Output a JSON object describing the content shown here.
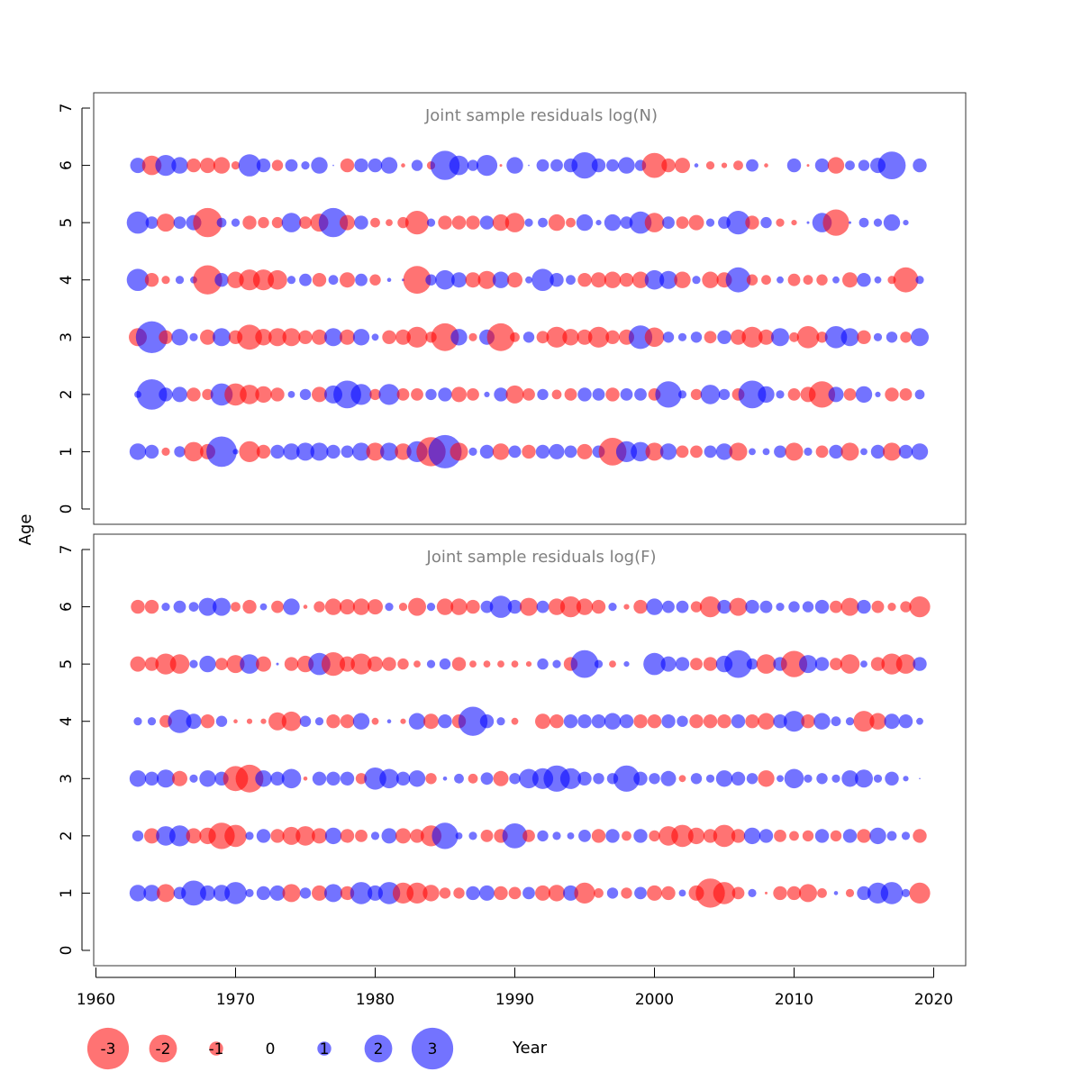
{
  "chart_data": {
    "type": "bubble",
    "ylabel": "Age",
    "xlabel": "Year",
    "xlim": [
      1960,
      2022
    ],
    "ylim": [
      0,
      7
    ],
    "x_ticks": [
      1960,
      1970,
      1980,
      1990,
      2000,
      2010,
      2020
    ],
    "y_ticks": [
      0,
      1,
      2,
      3,
      4,
      5,
      6,
      7
    ],
    "colors": {
      "positive": "#0000ff",
      "negative": "#ff0000",
      "alpha": 0.55
    },
    "legend": {
      "values": [
        -3,
        -2,
        -1,
        0,
        1,
        2,
        3
      ],
      "labels": [
        "-3",
        "-2",
        "-1",
        "0",
        "1",
        "2",
        "3"
      ]
    },
    "panels": [
      {
        "title": "Joint sample residuals log(N)",
        "years": [
          1963,
          1964,
          1965,
          1966,
          1967,
          1968,
          1969,
          1970,
          1971,
          1972,
          1973,
          1974,
          1975,
          1976,
          1977,
          1978,
          1979,
          1980,
          1981,
          1982,
          1983,
          1984,
          1985,
          1986,
          1987,
          1988,
          1989,
          1990,
          1991,
          1992,
          1993,
          1994,
          1995,
          1996,
          1997,
          1998,
          1999,
          2000,
          2001,
          2002,
          2003,
          2004,
          2005,
          2006,
          2007,
          2008,
          2009,
          2010,
          2011,
          2012,
          2013,
          2014,
          2015,
          2016,
          2017,
          2018,
          2019
        ],
        "ages": [
          1,
          2,
          3,
          4,
          5,
          6
        ],
        "residuals": [
          [
            1.2,
            1.0,
            -0.6,
            0.8,
            -1.4,
            -1.1,
            2.2,
            0.4,
            -1.5,
            -1.0,
            1.0,
            1.2,
            1.3,
            1.3,
            1.0,
            0.9,
            1.3,
            -1.3,
            1.3,
            -1.2,
            1.5,
            -2.1,
            2.4,
            -1.3,
            0.6,
            1.0,
            -1.2,
            0.9,
            -1.0,
            1.0,
            1.1,
            0.9,
            -1.1,
            0.9,
            -2.0,
            1.5,
            1.4,
            -1.3,
            1.2,
            -0.9,
            -0.9,
            0.9,
            1.2,
            -1.3,
            0.5,
            0.5,
            0.9,
            -1.3,
            0.6,
            -0.9,
            1.0,
            -1.3,
            0.5,
            1.0,
            -1.3,
            1.0,
            1.2
          ],
          [
            0.5,
            2.2,
            1.0,
            1.1,
            -1.0,
            -0.8,
            1.6,
            -1.6,
            -1.4,
            -1.2,
            -1.0,
            0.5,
            0.8,
            -1.1,
            1.3,
            2.0,
            1.5,
            -0.8,
            1.5,
            -0.9,
            -0.9,
            0.8,
            1.0,
            -1.1,
            -0.9,
            0.4,
            1.0,
            -1.3,
            -0.9,
            0.8,
            -0.7,
            -0.9,
            1.0,
            0.9,
            -1.0,
            0.9,
            0.9,
            -0.9,
            1.9,
            0.6,
            -0.8,
            1.4,
            0.8,
            -0.9,
            2.0,
            1.2,
            0.6,
            -0.9,
            -1.1,
            -1.9,
            1.1,
            -0.9,
            1.2,
            0.4,
            -1.0,
            -0.9,
            0.7
          ],
          [
            -1.3,
            2.3,
            -1.0,
            1.2,
            0.6,
            -1.1,
            1.3,
            -1.0,
            -1.8,
            -1.2,
            -1.3,
            -1.3,
            -1.0,
            -1.1,
            1.3,
            -1.1,
            1.2,
            0.5,
            -1.0,
            -1.1,
            -1.5,
            -0.8,
            -2.0,
            1.2,
            -0.6,
            1.1,
            -2.0,
            -0.7,
            0.8,
            -0.9,
            -1.5,
            -1.2,
            -1.1,
            -1.5,
            -1.0,
            -1.1,
            1.7,
            -1.4,
            0.8,
            0.6,
            0.8,
            -0.9,
            1.0,
            -1.1,
            -1.5,
            -1.1,
            1.3,
            -0.7,
            -1.6,
            -0.8,
            1.6,
            1.3,
            -1.0,
            0.6,
            0.8,
            -0.8,
            1.3
          ],
          [
            1.6,
            -1.0,
            -0.6,
            0.6,
            0.5,
            -2.1,
            1.0,
            -1.2,
            -1.5,
            -1.5,
            -1.4,
            0.6,
            0.9,
            -1.0,
            0.7,
            -1.1,
            0.9,
            -0.8,
            0.3,
            0.2,
            -2.0,
            0.8,
            1.4,
            1.1,
            -1.1,
            -1.3,
            1.2,
            -1.1,
            0.5,
            1.6,
            1.0,
            0.7,
            -1.0,
            -1.1,
            -1.2,
            -1.0,
            -1.2,
            1.4,
            1.3,
            -1.2,
            0.6,
            -1.2,
            -1.1,
            1.8,
            -0.8,
            -0.7,
            0.5,
            -0.9,
            -0.7,
            -0.8,
            0.5,
            -1.1,
            1.0,
            0.5,
            -0.6,
            -1.8,
            0.6
          ],
          [
            1.6,
            0.9,
            -1.3,
            0.9,
            1.1,
            -2.1,
            0.7,
            0.6,
            -1.0,
            -0.8,
            -0.8,
            1.4,
            -0.9,
            -1.3,
            2.1,
            -1.1,
            1.0,
            -0.7,
            -0.5,
            -0.8,
            -1.7,
            0.6,
            -1.0,
            -1.0,
            -1.0,
            1.0,
            -1.2,
            -1.4,
            0.6,
            0.7,
            -1.2,
            -0.7,
            1.2,
            0.4,
            1.2,
            0.9,
            1.6,
            -1.4,
            0.9,
            -0.9,
            -1.1,
            0.6,
            0.9,
            1.7,
            -1.0,
            0.8,
            -0.6,
            -0.4,
            0.2,
            1.4,
            -1.9,
            0.2,
            0.7,
            0.6,
            1.2,
            0.4,
            0
          ],
          [
            1.1,
            -1.4,
            1.5,
            1.2,
            -1.0,
            -1.1,
            -1.2,
            -0.6,
            1.6,
            1.0,
            -0.8,
            0.9,
            0.6,
            1.2,
            0.1,
            -1.0,
            1.0,
            1.0,
            1.2,
            -0.3,
            0.8,
            -0.6,
            2.1,
            1.4,
            0.8,
            1.5,
            -0.2,
            1.2,
            0.1,
            0.9,
            0.9,
            1.0,
            1.9,
            1.0,
            0.9,
            1.2,
            0.8,
            -1.8,
            -1.0,
            -1.1,
            0.3,
            -0.6,
            -0.4,
            -0.7,
            0.9,
            -0.3,
            0,
            1.0,
            -0.2,
            1.0,
            -1.2,
            0.7,
            0.8,
            1.1,
            2.0,
            0,
            1.0
          ]
        ]
      },
      {
        "title": "Joint sample residuals log(F)",
        "years": [
          1963,
          1964,
          1965,
          1966,
          1967,
          1968,
          1969,
          1970,
          1971,
          1972,
          1973,
          1974,
          1975,
          1976,
          1977,
          1978,
          1979,
          1980,
          1981,
          1982,
          1983,
          1984,
          1985,
          1986,
          1987,
          1988,
          1989,
          1990,
          1991,
          1992,
          1993,
          1994,
          1995,
          1996,
          1997,
          1998,
          1999,
          2000,
          2001,
          2002,
          2003,
          2004,
          2005,
          2006,
          2007,
          2008,
          2009,
          2010,
          2011,
          2012,
          2013,
          2014,
          2015,
          2016,
          2017,
          2018,
          2019
        ],
        "ages": [
          1,
          2,
          3,
          4,
          5,
          6
        ],
        "residuals": [
          [
            1.2,
            1.2,
            -1.3,
            0.9,
            1.8,
            1.1,
            1.2,
            1.6,
            0.6,
            1.0,
            1.1,
            -1.3,
            0.8,
            -1.1,
            1.3,
            -1.0,
            1.6,
            1.1,
            1.6,
            -1.5,
            -1.5,
            -1.2,
            -0.8,
            -0.8,
            1.0,
            1.1,
            -1.0,
            -0.9,
            0.9,
            -1.1,
            -1.2,
            1.1,
            -1.5,
            -0.7,
            0.8,
            -0.8,
            0.9,
            -1.1,
            -1.0,
            0.5,
            -1.1,
            -2.1,
            -1.6,
            -0.9,
            0.6,
            -0.2,
            -1.0,
            -1.0,
            -1.3,
            -0.7,
            0.3,
            -0.6,
            1.0,
            1.5,
            1.6,
            0.6,
            -1.5
          ],
          [
            0.8,
            -1.1,
            1.4,
            1.5,
            -1.1,
            -1.2,
            -1.9,
            -1.6,
            0.6,
            1.0,
            -1.0,
            -1.3,
            -1.4,
            -1.1,
            1.2,
            -1.0,
            -0.9,
            0.6,
            1.1,
            -1.1,
            -1.0,
            -1.5,
            1.9,
            0.5,
            0.6,
            -0.9,
            -1.0,
            1.8,
            -0.9,
            0.8,
            0.6,
            0.5,
            0.9,
            -1.0,
            1.0,
            -0.7,
            1.0,
            -0.8,
            -1.4,
            -1.6,
            -1.2,
            -1.0,
            -1.6,
            -1.0,
            1.2,
            1.0,
            -0.9,
            -0.7,
            -0.8,
            1.0,
            -0.8,
            1.0,
            -1.0,
            1.2,
            0.7,
            0.6,
            -1.0
          ],
          [
            1.2,
            1.0,
            1.3,
            -1.1,
            0.6,
            1.2,
            1.0,
            -1.8,
            -2.0,
            1.2,
            1.0,
            1.4,
            -0.3,
            1.0,
            1.0,
            1.0,
            -0.8,
            1.6,
            1.4,
            1.0,
            1.2,
            -0.8,
            0.3,
            0.7,
            -0.7,
            0.9,
            -1.1,
            0.8,
            1.4,
            1.5,
            1.9,
            1.5,
            1.0,
            0.8,
            0.8,
            1.9,
            1.0,
            0.8,
            1.1,
            -0.5,
            0.8,
            0.6,
            1.2,
            1.0,
            0.8,
            -1.2,
            0.5,
            1.4,
            0.6,
            0.8,
            0.6,
            1.2,
            1.3,
            0.6,
            1.0,
            0.4,
            0.1
          ],
          [
            0.6,
            0.6,
            -0.9,
            1.7,
            1.1,
            -1.0,
            0.8,
            -0.3,
            -0.4,
            -0.4,
            -1.3,
            -1.4,
            0.8,
            0.6,
            -1.0,
            -1.0,
            1.2,
            -0.5,
            0.3,
            -0.4,
            1.2,
            -1.1,
            1.0,
            -1.0,
            2.1,
            1.0,
            0.6,
            -0.5,
            0,
            -1.1,
            -1.0,
            1.0,
            1.0,
            1.0,
            1.2,
            1.0,
            -1.0,
            -1.0,
            1.0,
            0.8,
            -1.0,
            -1.0,
            -1.0,
            1.0,
            -1.0,
            -1.2,
            1.0,
            1.5,
            -1.0,
            1.2,
            0.7,
            0.6,
            -1.5,
            -1.2,
            1.1,
            1.0,
            0.5
          ],
          [
            -1.1,
            -1.0,
            -1.5,
            -1.4,
            0.6,
            1.2,
            -0.9,
            -1.3,
            1.4,
            -1.1,
            0.2,
            -1.0,
            -1.2,
            1.6,
            -1.7,
            -1.1,
            -1.5,
            -1.1,
            -1.0,
            -0.8,
            -0.5,
            0.6,
            0.8,
            -1.0,
            -0.5,
            -0.5,
            -0.5,
            -0.5,
            -0.4,
            0.8,
            0.6,
            -1.0,
            2.0,
            0.6,
            -0.5,
            0.4,
            0,
            1.6,
            1.1,
            1.0,
            -0.9,
            -1.0,
            1.2,
            2.0,
            0.8,
            -1.4,
            1.0,
            -1.9,
            1.3,
            1.0,
            -0.9,
            -1.4,
            0.5,
            -1.0,
            -1.5,
            -1.4,
            1.0
          ],
          [
            -1.0,
            -1.0,
            0.6,
            0.9,
            0.7,
            1.3,
            1.3,
            -0.7,
            -1.0,
            0.5,
            -0.9,
            1.2,
            -0.3,
            -0.8,
            -1.2,
            -1.1,
            -1.2,
            -1.1,
            0.6,
            -0.6,
            -1.3,
            0.6,
            -1.2,
            -1.2,
            -1.0,
            0.9,
            1.6,
            1.0,
            -1.3,
            0.9,
            -1.2,
            -1.5,
            -1.2,
            -1.0,
            0.6,
            -0.4,
            -1.0,
            1.2,
            0.9,
            0.9,
            -0.8,
            -1.5,
            1.0,
            -1.3,
            1.0,
            0.9,
            0.6,
            0.8,
            0.8,
            1.0,
            -0.9,
            -1.3,
            1.0,
            -0.9,
            -0.6,
            -0.8,
            -1.5
          ]
        ]
      }
    ]
  }
}
